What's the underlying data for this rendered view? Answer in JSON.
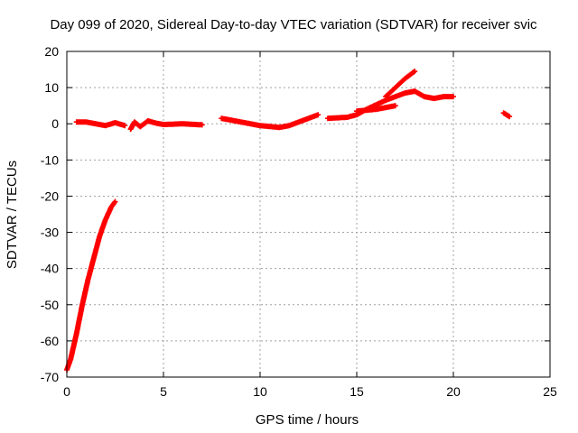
{
  "chart_data": {
    "type": "scatter",
    "title": "Day 099 of 2020, Sidereal Day-to-day VTEC variation (SDTVAR) for receiver svic",
    "xlabel": "GPS time / hours",
    "ylabel": "SDTVAR / TECUs",
    "xlim": [
      0,
      25
    ],
    "ylim": [
      -70,
      20
    ],
    "xticks": [
      0,
      5,
      10,
      15,
      20,
      25
    ],
    "yticks": [
      -70,
      -60,
      -50,
      -40,
      -30,
      -20,
      -10,
      0,
      10,
      20
    ],
    "grid": true,
    "marker": "plus",
    "color": "#ff0000",
    "series": [
      {
        "segments": [
          [
            [
              0.0,
              -68.0
            ],
            [
              0.2,
              -65.0
            ],
            [
              0.5,
              -58.0
            ],
            [
              0.8,
              -50.0
            ],
            [
              1.1,
              -43.0
            ],
            [
              1.4,
              -37.0
            ],
            [
              1.7,
              -31.0
            ],
            [
              2.0,
              -26.5
            ],
            [
              2.3,
              -23.0
            ],
            [
              2.5,
              -21.5
            ]
          ],
          [
            [
              0.5,
              0.5
            ],
            [
              1.0,
              0.5
            ],
            [
              1.5,
              0.0
            ],
            [
              2.0,
              -0.5
            ],
            [
              2.5,
              0.3
            ],
            [
              3.0,
              -0.5
            ]
          ],
          [
            [
              3.3,
              -1.5
            ],
            [
              3.5,
              0.5
            ],
            [
              3.8,
              -0.8
            ],
            [
              4.2,
              0.8
            ],
            [
              4.6,
              0.2
            ],
            [
              5.0,
              -0.2
            ],
            [
              6.0,
              0.0
            ],
            [
              7.0,
              -0.3
            ]
          ],
          [
            [
              8.0,
              1.5
            ],
            [
              9.0,
              0.5
            ],
            [
              10.0,
              -0.5
            ],
            [
              11.0,
              -1.0
            ],
            [
              11.5,
              -0.5
            ],
            [
              12.0,
              0.5
            ],
            [
              12.5,
              1.5
            ],
            [
              13.0,
              2.5
            ]
          ],
          [
            [
              13.5,
              1.5
            ],
            [
              14.5,
              1.8
            ],
            [
              15.0,
              2.5
            ],
            [
              15.5,
              4.0
            ],
            [
              16.5,
              6.5
            ],
            [
              17.5,
              8.5
            ],
            [
              18.0,
              9.0
            ],
            [
              18.5,
              7.5
            ],
            [
              19.0,
              7.0
            ],
            [
              19.5,
              7.5
            ],
            [
              20.0,
              7.5
            ]
          ],
          [
            [
              16.5,
              7.5
            ],
            [
              17.0,
              10.0
            ],
            [
              17.5,
              12.5
            ],
            [
              18.0,
              14.5
            ]
          ],
          [
            [
              15.0,
              3.5
            ],
            [
              16.0,
              4.0
            ],
            [
              16.5,
              4.5
            ],
            [
              17.0,
              5.0
            ]
          ],
          [
            [
              22.6,
              3.0
            ],
            [
              22.9,
              2.0
            ]
          ]
        ]
      }
    ]
  }
}
